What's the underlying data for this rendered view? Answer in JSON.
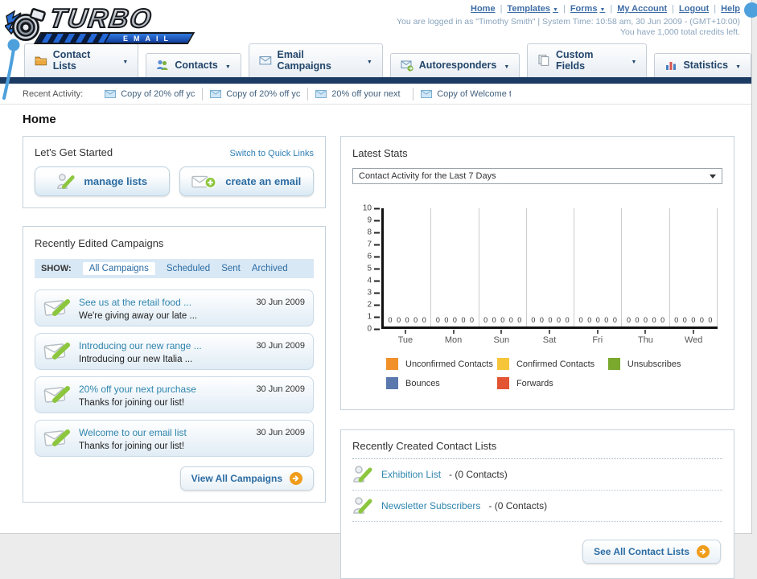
{
  "header": {
    "logo_line1": "TURBO",
    "logo_line2": "EMAIL",
    "nav_links": [
      {
        "label": "Home",
        "dropdown": false
      },
      {
        "label": "Templates",
        "dropdown": true
      },
      {
        "label": "Forms",
        "dropdown": true
      },
      {
        "label": "My Account",
        "dropdown": false
      },
      {
        "label": "Logout",
        "dropdown": false
      },
      {
        "label": "Help",
        "dropdown": false
      }
    ],
    "login_text": "You are logged in as \"Timothy Smith\" | System Time: 10:58 am, 30 Jun 2009 - (GMT+10:00)",
    "credits_text": "You have 1,000 total credits left."
  },
  "nav_tabs": [
    {
      "label": "Contact Lists",
      "icon": "contact-lists-icon"
    },
    {
      "label": "Contacts",
      "icon": "contacts-icon"
    },
    {
      "label": "Email Campaigns",
      "icon": "email-campaigns-icon"
    },
    {
      "label": "Autoresponders",
      "icon": "autoresponders-icon"
    },
    {
      "label": "Custom Fields",
      "icon": "custom-fields-icon"
    },
    {
      "label": "Statistics",
      "icon": "statistics-icon"
    }
  ],
  "recent_activity": {
    "label": "Recent Activity:",
    "items": [
      "Copy of 20% off yc",
      "Copy of 20% off yc",
      "20% off your next",
      "Copy of Welcome tc"
    ]
  },
  "page_title": "Home",
  "get_started": {
    "title": "Let's Get Started",
    "switch_link": "Switch to Quick Links",
    "buttons": [
      {
        "label": "manage lists"
      },
      {
        "label": "create an email"
      }
    ]
  },
  "campaigns": {
    "title": "Recently Edited Campaigns",
    "show_label": "SHOW:",
    "filters": [
      {
        "label": "All Campaigns",
        "active": true
      },
      {
        "label": "Scheduled",
        "active": false
      },
      {
        "label": "Sent",
        "active": false
      },
      {
        "label": "Archived",
        "active": false
      }
    ],
    "items": [
      {
        "title": "See us at the retail food ...",
        "subtitle": "We're giving away our late ...",
        "date": "30 Jun 2009"
      },
      {
        "title": "Introducing our new range ...",
        "subtitle": "Introducing our new Italia ...",
        "date": "30 Jun 2009"
      },
      {
        "title": "20% off your next purchase",
        "subtitle": "Thanks for joining our list!",
        "date": "30 Jun 2009"
      },
      {
        "title": "Welcome to our email list",
        "subtitle": "Thanks for joining our list!",
        "date": "30 Jun 2009"
      }
    ],
    "view_all_label": "View All Campaigns"
  },
  "stats": {
    "title": "Latest Stats",
    "dropdown_value": "Contact Activity for the Last 7 Days"
  },
  "chart_data": {
    "type": "bar",
    "title": "Contact Activity for the Last 7 Days",
    "categories": [
      "Tue",
      "Mon",
      "Sun",
      "Sat",
      "Fri",
      "Thu",
      "Wed"
    ],
    "series": [
      {
        "name": "Unconfirmed Contacts",
        "color": "#f2902a",
        "values": [
          0,
          0,
          0,
          0,
          0,
          0,
          0
        ]
      },
      {
        "name": "Confirmed Contacts",
        "color": "#f6c53a",
        "values": [
          0,
          0,
          0,
          0,
          0,
          0,
          0
        ]
      },
      {
        "name": "Unsubscribes",
        "color": "#7aa92e",
        "values": [
          0,
          0,
          0,
          0,
          0,
          0,
          0
        ]
      },
      {
        "name": "Bounces",
        "color": "#5a78ad",
        "values": [
          0,
          0,
          0,
          0,
          0,
          0,
          0
        ]
      },
      {
        "name": "Forwards",
        "color": "#e25432",
        "values": [
          0,
          0,
          0,
          0,
          0,
          0,
          0
        ]
      }
    ],
    "xlabel": "",
    "ylabel": "",
    "ylim": [
      0,
      10
    ],
    "yticks": [
      0,
      1,
      2,
      3,
      4,
      5,
      6,
      7,
      8,
      9,
      10
    ],
    "grid": "vertical",
    "legend_position": "bottom"
  },
  "contact_lists": {
    "title": "Recently Created Contact Lists",
    "items": [
      {
        "name": "Exhibition List",
        "detail": "- (0 Contacts)"
      },
      {
        "name": "Newsletter Subscribers",
        "detail": "- (0 Contacts)"
      }
    ],
    "see_all_label": "See All Contact Lists"
  }
}
